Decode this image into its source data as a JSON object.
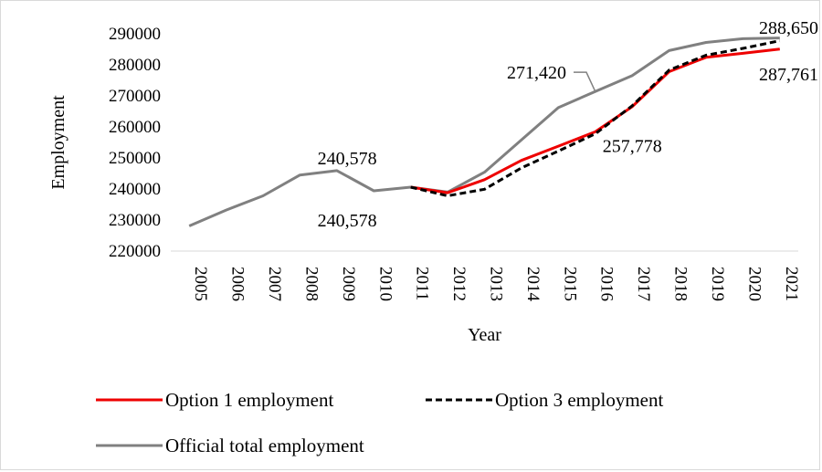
{
  "chart_data": {
    "type": "line",
    "xlabel": "Year",
    "ylabel": "Employment",
    "ylim": [
      220000,
      290000
    ],
    "ytick_step": 10000,
    "grid": false,
    "legend_position": "bottom",
    "x": [
      "2005",
      "2006",
      "2007",
      "2008",
      "2009",
      "2010",
      "2011",
      "2012",
      "2013",
      "2014",
      "2015",
      "2016",
      "2017",
      "2018",
      "2019",
      "2020",
      "2021"
    ],
    "series": [
      {
        "name": "Option 1 employment",
        "color": "#ee0000",
        "dash": "solid",
        "x": [
          "2011",
          "2012",
          "2013",
          "2014",
          "2015",
          "2016",
          "2017",
          "2018",
          "2019",
          "2020",
          "2021"
        ],
        "values": [
          240578,
          238800,
          243000,
          249200,
          253800,
          258400,
          266500,
          277800,
          282400,
          283700,
          285100
        ]
      },
      {
        "name": "Option 3 employment",
        "color": "#000000",
        "dash": "dashed",
        "x": [
          "2011",
          "2012",
          "2013",
          "2014",
          "2015",
          "2016",
          "2017",
          "2018",
          "2019",
          "2020",
          "2021"
        ],
        "values": [
          240578,
          237800,
          239900,
          246800,
          252200,
          257778,
          266800,
          278300,
          283100,
          285300,
          287761
        ]
      },
      {
        "name": "Official total employment",
        "color": "#808080",
        "dash": "solid",
        "x": [
          "2005",
          "2006",
          "2007",
          "2008",
          "2009",
          "2010",
          "2011",
          "2012",
          "2013",
          "2014",
          "2015",
          "2016",
          "2017",
          "2018",
          "2019",
          "2020",
          "2021"
        ],
        "values": [
          228100,
          233200,
          237800,
          244500,
          245900,
          239400,
          240578,
          239000,
          245400,
          255800,
          266200,
          271420,
          276500,
          284600,
          287200,
          288400,
          288650
        ]
      }
    ],
    "annotations": [
      {
        "text": "240,578",
        "x": "2011",
        "y": 240578,
        "position": "above"
      },
      {
        "text": "240,578",
        "x": "2011",
        "y": 240578,
        "position": "below"
      },
      {
        "text": "271,420",
        "x": "2016",
        "y": 271420,
        "position": "left-leader"
      },
      {
        "text": "257,778",
        "x": "2016",
        "y": 257778,
        "position": "below-right"
      },
      {
        "text": "288,650",
        "x": "2021",
        "y": 288650,
        "position": "above"
      },
      {
        "text": "287,761",
        "x": "2021",
        "y": 287761,
        "position": "below"
      }
    ]
  }
}
